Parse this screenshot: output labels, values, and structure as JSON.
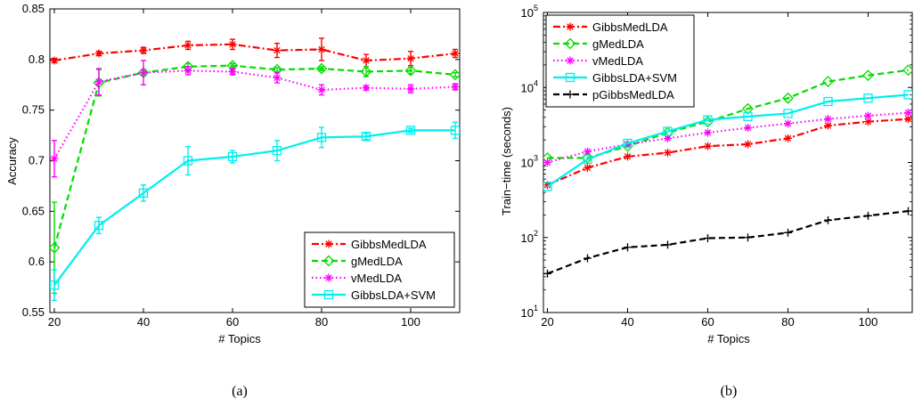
{
  "chart_data": [
    {
      "type": "line",
      "caption": "(a)",
      "xlabel": "# Topics",
      "ylabel": "Accuracy",
      "xlim": [
        19,
        111
      ],
      "ylim": [
        0.55,
        0.85
      ],
      "yscale": "linear",
      "xticks": [
        20,
        40,
        60,
        80,
        100
      ],
      "xtick_labels": [
        "20",
        "40",
        "60",
        "80",
        "100"
      ],
      "yticks": [
        0.55,
        0.6,
        0.65,
        0.7,
        0.75,
        0.8,
        0.85
      ],
      "ytick_labels": [
        "0.55",
        "0.6",
        "0.65",
        "0.7",
        "0.75",
        "0.8",
        "0.85"
      ],
      "grid": false,
      "legend_position": "bottom-right",
      "x": [
        20,
        30,
        40,
        50,
        60,
        70,
        80,
        90,
        100,
        110
      ],
      "series": [
        {
          "name": "GibbsMedLDA",
          "color": "#ff0000",
          "dash": "dashdot",
          "marker": "star",
          "values": [
            0.799,
            0.806,
            0.809,
            0.814,
            0.815,
            0.809,
            0.81,
            0.799,
            0.801,
            0.806
          ],
          "err": [
            0.002,
            0.002,
            0.003,
            0.004,
            0.005,
            0.007,
            0.011,
            0.006,
            0.007,
            0.004
          ]
        },
        {
          "name": "gMedLDA",
          "color": "#00dd00",
          "dash": "dashed",
          "marker": "diamond",
          "values": [
            0.614,
            0.777,
            0.787,
            0.793,
            0.794,
            0.79,
            0.791,
            0.788,
            0.789,
            0.785
          ],
          "err": [
            0.045,
            0.013,
            0.003,
            0.003,
            0.002,
            0.002,
            0.002,
            0.005,
            0.003,
            0.002
          ]
        },
        {
          "name": "vMedLDA",
          "color": "#ff00ff",
          "dash": "dotted",
          "marker": "asterisk",
          "values": [
            0.702,
            0.778,
            0.787,
            0.789,
            0.788,
            0.782,
            0.77,
            0.772,
            0.771,
            0.773
          ],
          "err": [
            0.018,
            0.013,
            0.012,
            0.004,
            0.003,
            0.005,
            0.005,
            0.002,
            0.004,
            0.003
          ]
        },
        {
          "name": "GibbsLDA+SVM",
          "color": "#00eeee",
          "dash": "solid",
          "marker": "square",
          "values": [
            0.577,
            0.636,
            0.668,
            0.7,
            0.704,
            0.71,
            0.723,
            0.724,
            0.73,
            0.73
          ],
          "err": [
            0.015,
            0.008,
            0.008,
            0.014,
            0.006,
            0.01,
            0.01,
            0.003,
            0.002,
            0.008
          ]
        }
      ]
    },
    {
      "type": "line",
      "caption": "(b)",
      "xlabel": "# Topics",
      "ylabel": "Train−time (seconds)",
      "xlim": [
        19,
        111
      ],
      "ylim": [
        10,
        100000
      ],
      "yscale": "log",
      "xticks": [
        20,
        40,
        60,
        80,
        100
      ],
      "xtick_labels": [
        "20",
        "40",
        "60",
        "80",
        "100"
      ],
      "yticks": [
        10,
        100,
        1000,
        10000,
        100000
      ],
      "ytick_labels": [
        [
          "10",
          "1"
        ],
        [
          "10",
          "2"
        ],
        [
          "10",
          "3"
        ],
        [
          "10",
          "4"
        ],
        [
          "10",
          "5"
        ]
      ],
      "grid": false,
      "legend_position": "top-left",
      "x": [
        20,
        30,
        40,
        50,
        60,
        70,
        80,
        90,
        100,
        110
      ],
      "series": [
        {
          "name": "GibbsMedLDA",
          "color": "#ff0000",
          "dash": "dashdot",
          "marker": "star",
          "values": [
            500,
            850,
            1200,
            1350,
            1650,
            1750,
            2100,
            3100,
            3500,
            3800
          ]
        },
        {
          "name": "gMedLDA",
          "color": "#00dd00",
          "dash": "dashed",
          "marker": "diamond",
          "values": [
            1150,
            1150,
            1650,
            2500,
            3500,
            5200,
            7200,
            12000,
            14500,
            17000
          ]
        },
        {
          "name": "vMedLDA",
          "color": "#ff00ff",
          "dash": "dotted",
          "marker": "asterisk",
          "values": [
            1000,
            1400,
            1750,
            2100,
            2500,
            2900,
            3300,
            3800,
            4200,
            4600
          ]
        },
        {
          "name": "GibbsLDA+SVM",
          "color": "#00eeee",
          "dash": "solid",
          "marker": "square",
          "values": [
            480,
            1100,
            1800,
            2600,
            3700,
            4100,
            4500,
            6500,
            7200,
            8000
          ]
        },
        {
          "name": "pGibbsMedLDA",
          "color": "#000000",
          "dash": "dashed",
          "marker": "plus",
          "values": [
            33,
            53,
            74,
            80,
            98,
            100,
            116,
            170,
            195,
            225
          ]
        }
      ]
    }
  ]
}
